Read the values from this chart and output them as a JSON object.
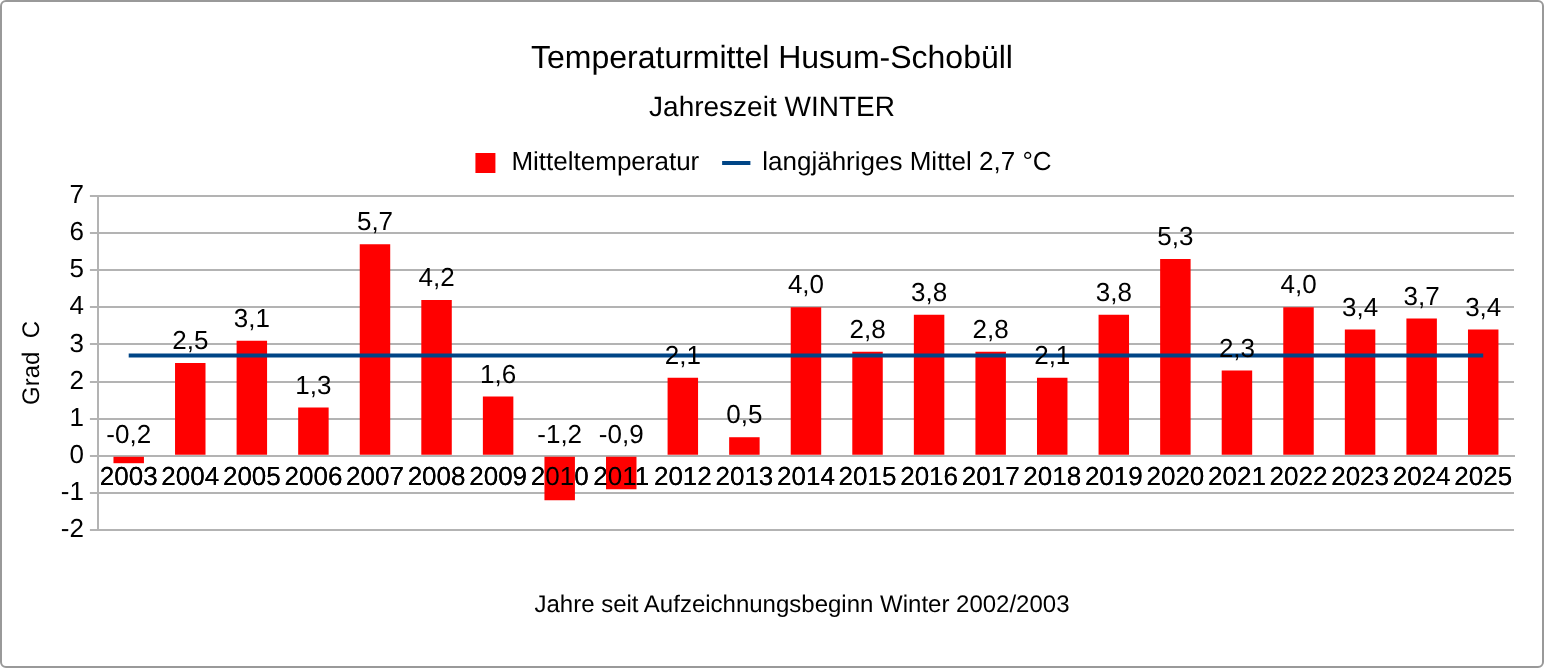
{
  "chart_data": {
    "type": "bar",
    "title": "Temperaturmittel  Husum-Schobüll",
    "subtitle": "Jahreszeit   WINTER",
    "xlabel": "Jahre seit Aufzeichnungsbeginn   Winter 2002/2003",
    "ylabel": "Grad  C",
    "categories": [
      "2003",
      "2004",
      "2005",
      "2006",
      "2007",
      "2008",
      "2009",
      "2010",
      "2011",
      "2012",
      "2013",
      "2014",
      "2015",
      "2016",
      "2017",
      "2018",
      "2019",
      "2020",
      "2021",
      "2022",
      "2023",
      "2024",
      "2025"
    ],
    "series": [
      {
        "name": "Mitteltemperatur",
        "color": "#ff0000",
        "values": [
          -0.2,
          2.5,
          3.1,
          1.3,
          5.7,
          4.2,
          1.6,
          -1.2,
          -0.9,
          2.1,
          0.5,
          4.0,
          2.8,
          3.8,
          2.8,
          2.1,
          3.8,
          5.3,
          2.3,
          4.0,
          3.4,
          3.7,
          3.4
        ],
        "value_labels": [
          "-0,2",
          "2,5",
          "3,1",
          "1,3",
          "5,7",
          "4,2",
          "1,6",
          "-1,2",
          "-0,9",
          "2,1",
          "0,5",
          "4,0",
          "2,8",
          "3,8",
          "2,8",
          "2,1",
          "3,8",
          "5,3",
          "2,3",
          "4,0",
          "3,4",
          "3,7",
          "3,4"
        ]
      },
      {
        "name": "langjähriges Mittel 2,7 °C",
        "type": "line",
        "color": "#004586",
        "values": [
          2.7,
          2.7,
          2.7,
          2.7,
          2.7,
          2.7,
          2.7,
          2.7,
          2.7,
          2.7,
          2.7,
          2.7,
          2.7,
          2.7,
          2.7,
          2.7,
          2.7,
          2.7,
          2.7,
          2.7,
          2.7,
          2.7,
          2.7
        ]
      }
    ],
    "ylim": [
      -2,
      7
    ],
    "yticks": [
      -2,
      -1,
      0,
      1,
      2,
      3,
      4,
      5,
      6,
      7
    ],
    "grid": "y",
    "legend": "top",
    "marker": "none"
  }
}
